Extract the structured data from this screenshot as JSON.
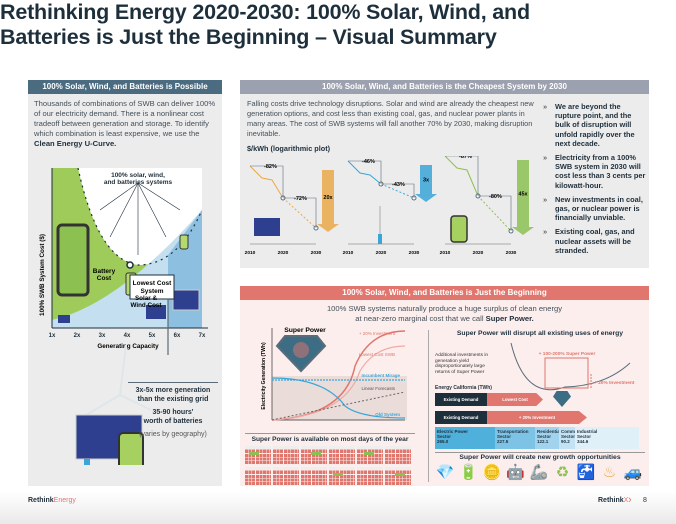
{
  "title": "Rethinking Energy 2020-2030: 100% Solar, Wind, and Batteries is Just the Beginning – Visual Summary",
  "left": {
    "header": "100% Solar, Wind, and Batteries is Possible",
    "body": "Thousands of combinations of SWB can deliver 100% of our electricity demand. There is a nonlinear cost tradeoff between generation and storage. To identify which combination is least expensive, we use the",
    "body_bold": "Clean Energy U-Curve.",
    "ucurve": {
      "ylabel": "100% SWB System Cost ($)",
      "xlabel": "Generating Capacity",
      "xticks": [
        "1x",
        "2x",
        "3x",
        "4x",
        "5x",
        "6x",
        "7x"
      ],
      "systems_label_1": "100% solar, wind,",
      "systems_label_2": "and batteries systems",
      "battery_cost_1": "Battery",
      "battery_cost_2": "Cost",
      "lowest_cost_1": "Lowest Cost",
      "lowest_cost_2": "System",
      "solar_wind_1": "Solar &",
      "solar_wind_2": "Wind Cost"
    },
    "gen_1": "3x-5x more generation",
    "gen_2": "than the existing grid",
    "hours_1": "35-90 hours'",
    "hours_2": "worth of batteries",
    "note": "(varies by geography)"
  },
  "cheapest": {
    "header": "100% Solar, Wind, and Batteries is the Cheapest System by 2030",
    "body": "Falling costs drive technology disruptions. Solar and wind are already the cheapest new generation options, and cost less than existing coal, gas, and nuclear power plants in many areas. The cost of SWB systems will fall another 70% by 2030, making disruption inevitable.",
    "plot_label": "$/kWh (logarithmic plot)",
    "charts": [
      {
        "tech": "solar",
        "drop_past": "-82%",
        "drop_future": "-72%",
        "factor": "20x",
        "color": "#e9a94a",
        "years": [
          "2010",
          "2020",
          "2030"
        ]
      },
      {
        "tech": "wind",
        "drop_past": "-46%",
        "drop_future": "-43%",
        "factor": "3x",
        "color": "#3aa6d8",
        "years": [
          "2010",
          "2020",
          "2030"
        ]
      },
      {
        "tech": "batteries",
        "drop_past": "-87%",
        "drop_future": "-80%",
        "factor": "45x",
        "color": "#8cc152",
        "years": [
          "2010",
          "2020",
          "2030"
        ]
      }
    ],
    "bullets": [
      "We are beyond the rupture point, and the bulk of disruption will unfold rapidly over the next decade.",
      "Electricity from a 100% SWB system in 2030 will cost less than 3 cents per kilowatt-hour.",
      "New investments in coal, gas, or nuclear power is financially unviable.",
      "Existing coal, gas, and nuclear assets will be stranded."
    ]
  },
  "beginning": {
    "header": "100% Solar, Wind, and Batteries is Just the Beginning",
    "sub_1": "100% SWB systems naturally produce a huge surplus of clean energy",
    "sub_2": "at near-zero marginal cost that we call",
    "sub_bold": "Super Power.",
    "gen_chart": {
      "title": "Super Power",
      "ylabel": "Electricity Generation (TWh)",
      "l_invest": "+ 20% Investment",
      "l_lowest": "Lowest Cost SWB",
      "l_mirage": "Incumbent Mirage",
      "l_linear": "Linear Forecasts",
      "l_old": "Old System"
    },
    "calendar_title": "Super Power is available on most days of the year",
    "disrupt_title": "Super Power will disrupt all existing uses of energy",
    "disrupt_text": "Additional investments in generation yield disproportionately large returns of Super Power",
    "sp_label": "+ 100-200% Super Power",
    "inv_label": "+ 20% Investment",
    "ca_label": "Energy California (TWh)",
    "bar1": {
      "a": "Existing Demand",
      "b": "Lowest Cost"
    },
    "bar2": {
      "a": "Existing Demand",
      "b": "+ 20% Investment"
    },
    "sectors": [
      {
        "name": "Electric Power",
        "sub": "Sector",
        "value": "265.0"
      },
      {
        "name": "Transportation",
        "sub": "Sector",
        "value": "227.5"
      },
      {
        "name": "Residential",
        "sub": "Sector",
        "value": "122.1"
      },
      {
        "name": "Comm.",
        "sub": "Sector",
        "value": "90.2"
      },
      {
        "name": "Industrial",
        "sub": "Sector",
        "value": "344.6"
      }
    ],
    "growth_title": "Super Power will create new growth opportunities",
    "growth_icons": [
      "diamond-icon",
      "battery-icon",
      "coins-icon",
      "robot-icon",
      "robotic-arm-icon",
      "recycle-icon",
      "faucet-icon",
      "radiator-icon",
      "electric-car-icon"
    ]
  },
  "footer": {
    "brand_a": "Rethink",
    "brand_b": "Energy",
    "logo_a": "Rethink",
    "logo_b": "X",
    "page": "8"
  },
  "colors": {
    "navy": "#1e2f3c",
    "left_header": "#4a6b80",
    "mid_header": "#9ba1ae",
    "red_header": "#e0766e",
    "green": "#8cc152",
    "blue": "#3aa6d8",
    "orange": "#e9a94a"
  }
}
